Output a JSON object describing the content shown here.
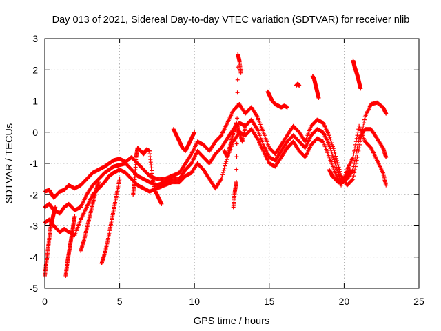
{
  "chart_data": {
    "type": "scatter",
    "title": "Day 013 of 2021, Sidereal Day-to-day VTEC variation (SDTVAR) for receiver nlib",
    "xlabel": "GPS time / hours",
    "ylabel": "SDTVAR / TECUs",
    "xlim": [
      0,
      25
    ],
    "ylim": [
      -5,
      3
    ],
    "xticks": [
      0,
      5,
      10,
      15,
      20,
      25
    ],
    "yticks": [
      -5,
      -4,
      -3,
      -2,
      -1,
      0,
      1,
      2,
      3
    ],
    "grid": true,
    "marker": "+",
    "series": [
      {
        "name": "SDTVAR",
        "color": "#ff0000",
        "segments": [
          {
            "x": [
              0.0,
              0.3,
              0.6,
              1.0,
              1.3,
              1.6,
              2.0,
              2.4,
              2.8,
              3.2,
              3.6,
              4.0,
              4.3,
              4.6,
              5.0,
              5.4,
              5.8,
              6.2,
              6.6,
              7.0,
              7.5,
              8.0,
              8.5,
              9.0,
              9.4,
              9.8,
              10.2,
              10.6,
              11.0,
              11.4,
              11.8,
              12.2,
              12.6,
              13.0,
              13.4,
              13.8,
              14.2,
              14.6,
              15.0,
              15.4,
              15.8,
              16.2,
              16.6,
              17.0,
              17.4,
              17.8,
              18.2,
              18.6,
              19.0,
              19.4,
              19.8,
              20.2,
              20.6,
              21.0,
              21.4,
              21.8,
              22.2,
              22.6,
              22.8
            ],
            "y": [
              -1.9,
              -1.85,
              -2.1,
              -1.9,
              -1.85,
              -1.7,
              -1.8,
              -1.7,
              -1.5,
              -1.3,
              -1.2,
              -1.1,
              -1.0,
              -0.9,
              -0.85,
              -0.95,
              -0.8,
              -1.0,
              -1.2,
              -1.4,
              -1.5,
              -1.5,
              -1.4,
              -1.3,
              -1.0,
              -0.7,
              -0.3,
              -0.4,
              -0.6,
              -0.3,
              -0.1,
              0.3,
              0.7,
              0.9,
              0.6,
              0.8,
              0.5,
              0.0,
              -0.5,
              -0.7,
              -0.4,
              -0.1,
              0.2,
              0.0,
              -0.3,
              0.2,
              0.4,
              0.3,
              -0.1,
              -0.7,
              -1.4,
              -1.7,
              -1.5,
              -0.5,
              0.5,
              0.9,
              0.95,
              0.8,
              0.6
            ]
          },
          {
            "x": [
              0.0,
              0.3,
              0.6,
              1.0,
              1.3,
              1.6,
              2.0,
              2.4,
              2.8,
              3.2,
              3.6,
              4.0,
              4.3,
              4.6,
              5.0,
              5.4,
              5.8,
              6.2,
              6.6,
              7.0,
              7.5,
              8.0,
              8.5,
              9.0,
              9.4,
              9.8,
              10.2,
              10.6,
              11.0,
              11.4,
              11.8,
              12.2,
              12.6,
              13.0,
              13.4,
              13.8,
              14.2,
              14.6,
              15.0,
              15.4,
              15.8,
              16.2,
              16.6,
              17.0,
              17.4,
              17.8,
              18.2,
              18.6,
              19.0,
              19.4,
              19.8,
              20.2,
              20.6,
              21.0,
              21.4,
              21.8,
              22.2,
              22.6,
              22.8
            ],
            "y": [
              -2.4,
              -2.3,
              -2.5,
              -2.6,
              -2.4,
              -2.3,
              -2.5,
              -2.4,
              -2.0,
              -1.7,
              -1.5,
              -1.3,
              -1.2,
              -1.1,
              -1.05,
              -1.0,
              -1.2,
              -1.4,
              -1.5,
              -1.6,
              -1.7,
              -1.6,
              -1.5,
              -1.5,
              -1.2,
              -1.0,
              -0.6,
              -0.8,
              -1.0,
              -0.7,
              -0.5,
              -0.2,
              0.1,
              0.3,
              0.2,
              0.4,
              0.1,
              -0.4,
              -0.8,
              -0.9,
              -0.6,
              -0.3,
              -0.1,
              -0.3,
              -0.5,
              -0.1,
              0.1,
              0.0,
              -0.4,
              -1.0,
              -1.6,
              -1.5,
              -1.2,
              -0.2,
              0.1,
              0.1,
              -0.2,
              -0.5,
              -0.8
            ]
          },
          {
            "x": [
              0.0,
              0.3,
              0.6,
              1.0,
              1.3,
              1.6,
              2.0,
              2.4,
              2.8,
              3.2,
              3.6,
              4.0,
              4.3,
              4.6,
              5.0,
              5.4,
              5.8,
              6.2,
              6.6,
              7.0,
              7.5,
              8.0,
              8.5,
              9.0,
              9.4,
              9.8,
              10.2,
              10.6,
              11.0,
              11.4,
              11.8,
              12.2,
              12.6,
              13.0,
              13.4,
              13.8,
              14.2,
              14.6,
              15.0,
              15.4,
              15.8,
              16.2,
              16.6,
              17.0,
              17.4,
              17.8,
              18.2,
              18.6,
              19.0,
              19.4,
              19.8,
              20.2,
              20.6,
              21.0,
              21.4,
              21.8,
              22.2,
              22.6,
              22.8
            ],
            "y": [
              -2.9,
              -2.8,
              -3.0,
              -3.2,
              -3.1,
              -3.2,
              -3.3,
              -2.8,
              -2.4,
              -2.0,
              -1.8,
              -1.6,
              -1.4,
              -1.3,
              -1.2,
              -1.3,
              -1.5,
              -1.7,
              -1.8,
              -1.9,
              -1.8,
              -1.7,
              -1.6,
              -1.6,
              -1.4,
              -1.3,
              -1.0,
              -1.2,
              -1.5,
              -1.8,
              -1.5,
              -0.8,
              -0.3,
              0.0,
              -0.1,
              0.1,
              -0.2,
              -0.6,
              -1.0,
              -1.1,
              -0.8,
              -0.5,
              -0.3,
              -0.6,
              -0.8,
              -0.4,
              -0.2,
              -0.3,
              -0.8,
              -1.3,
              -1.7,
              -1.2,
              -0.8,
              0.2,
              -0.3,
              -0.5,
              -0.9,
              -1.3,
              -1.7
            ]
          },
          {
            "x": [
              0.0,
              0.1,
              0.2,
              0.3,
              0.4,
              0.5,
              0.6,
              0.7
            ],
            "y": [
              -4.6,
              -4.2,
              -3.8,
              -3.4,
              -3.0,
              -2.8,
              -2.6,
              -2.4
            ]
          },
          {
            "x": [
              1.4,
              1.5,
              1.6,
              1.7,
              1.8,
              1.9,
              2.0
            ],
            "y": [
              -4.6,
              -4.2,
              -3.9,
              -3.6,
              -3.3,
              -3.0,
              -2.7
            ]
          },
          {
            "x": [
              2.4,
              2.6,
              2.8,
              3.0,
              3.2,
              3.4,
              3.6
            ],
            "y": [
              -3.8,
              -3.5,
              -3.1,
              -2.7,
              -2.3,
              -1.9,
              -1.6
            ]
          },
          {
            "x": [
              3.8,
              4.0,
              4.2,
              4.4,
              4.6,
              4.8,
              5.0
            ],
            "y": [
              -4.2,
              -3.9,
              -3.5,
              -3.0,
              -2.5,
              -2.0,
              -1.5
            ]
          },
          {
            "x": [
              12.6,
              12.7,
              12.8,
              12.9,
              13.0,
              13.1
            ],
            "y": [
              -2.4,
              -1.9,
              -1.6,
              2.5,
              2.3,
              1.9
            ]
          },
          {
            "x": [
              14.9,
              15.0,
              15.1,
              15.2,
              15.4,
              15.6,
              15.8,
              16.0,
              16.2
            ],
            "y": [
              1.3,
              1.2,
              1.1,
              1.0,
              0.9,
              0.85,
              0.8,
              0.85,
              0.8
            ]
          },
          {
            "x": [
              16.8,
              16.9,
              17.0
            ],
            "y": [
              1.5,
              1.55,
              1.5
            ]
          },
          {
            "x": [
              17.9,
              18.0,
              18.1,
              18.2,
              18.3
            ],
            "y": [
              1.8,
              1.7,
              1.5,
              1.3,
              1.1
            ]
          },
          {
            "x": [
              20.6,
              20.7,
              20.8,
              20.9,
              21.0,
              21.1
            ],
            "y": [
              2.3,
              2.1,
              1.95,
              1.8,
              1.6,
              1.4
            ]
          },
          {
            "x": [
              5.9,
              6.0,
              6.1,
              6.2,
              6.4,
              6.6,
              6.8,
              7.0,
              7.2,
              7.4,
              7.6,
              7.8
            ],
            "y": [
              -2.0,
              -1.6,
              -0.8,
              -0.5,
              -0.6,
              -0.7,
              -0.55,
              -0.6,
              -1.5,
              -1.9,
              -2.1,
              -2.3
            ]
          },
          {
            "x": [
              8.6,
              8.8,
              9.0,
              9.2,
              9.4,
              9.6,
              9.8,
              10.0
            ],
            "y": [
              0.1,
              -0.1,
              -0.3,
              -0.5,
              -0.6,
              -0.4,
              -0.2,
              0.0
            ]
          },
          {
            "x": [
              19.0,
              19.2,
              19.4,
              19.6,
              19.8,
              20.0,
              20.2,
              20.4
            ],
            "y": [
              -1.2,
              -1.4,
              -1.5,
              -1.6,
              -1.55,
              -1.5,
              -1.4,
              -1.2
            ]
          },
          {
            "x": [
              12.0,
              12.2,
              12.4,
              12.6,
              12.8,
              13.0,
              13.2,
              13.4
            ],
            "y": [
              -0.6,
              -0.8,
              -0.4,
              0.0,
              0.3,
              0.0,
              -0.3,
              0.2
            ]
          }
        ]
      }
    ]
  }
}
